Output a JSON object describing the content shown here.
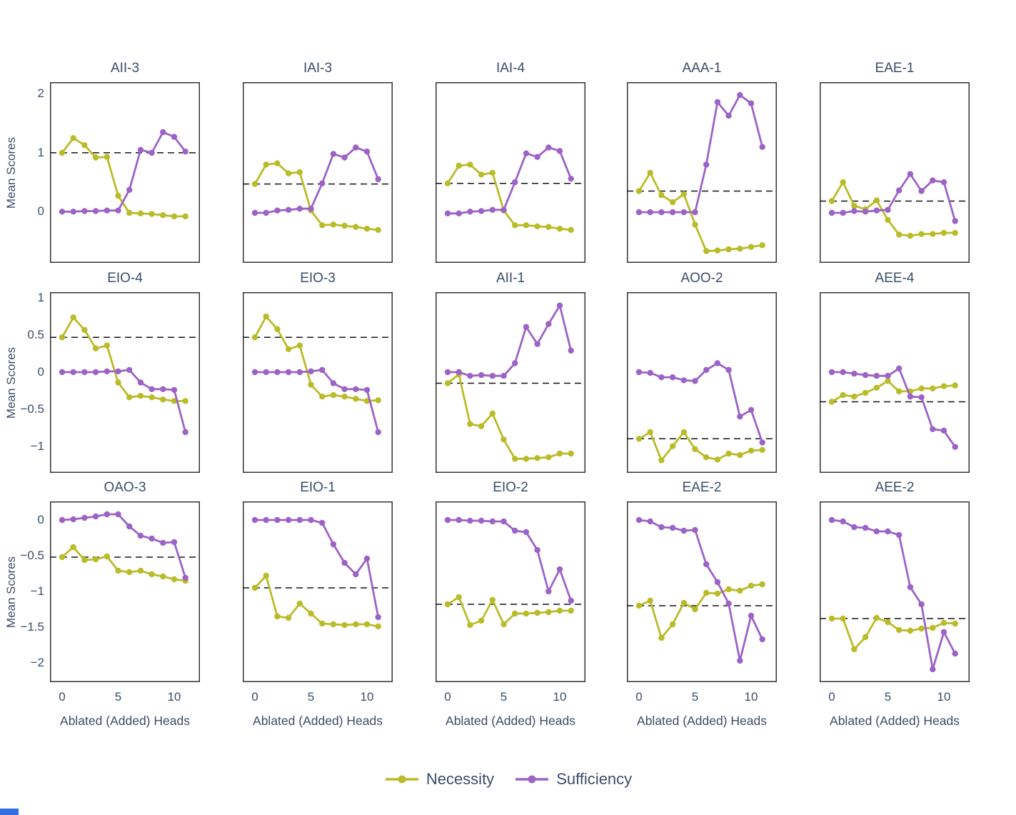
{
  "figure": {
    "ylabel": "Mean Scores",
    "xlabel": "Ablated (Added) Heads",
    "legend": {
      "items": [
        {
          "label": "Necessity",
          "color": "#b9bc28"
        },
        {
          "label": "Sufficiency",
          "color": "#9c63c6"
        }
      ]
    },
    "colors": {
      "text": "#3c4d68",
      "axis": "#333333",
      "dashed": "#141414",
      "background": "#ffffff",
      "necessity": "#b9bc28",
      "sufficiency": "#9c63c6",
      "artifact_blue": "#2f6fe4"
    }
  },
  "chart_data": {
    "type": "line",
    "x": [
      0,
      1,
      2,
      3,
      4,
      5,
      6,
      7,
      8,
      9,
      10,
      11
    ],
    "x_ticks": [
      0,
      5,
      10
    ],
    "x_tick_labels": [
      "0",
      "5",
      "10"
    ],
    "xlabel": "Ablated (Added) Heads",
    "ylabel": "Mean Scores",
    "legend": [
      "Necessity",
      "Sufficiency"
    ],
    "legend_position": "bottom-center",
    "grid": false,
    "layout": {
      "rows": 3,
      "cols": 5
    },
    "rows": [
      {
        "ylim": [
          -0.87,
          2.2
        ],
        "yticks": [
          2,
          1,
          0
        ],
        "ytick_labels": [
          "2",
          "1",
          "0"
        ]
      },
      {
        "ylim": [
          -1.36,
          1.08
        ],
        "yticks": [
          1,
          0.5,
          0,
          -0.5,
          -1
        ],
        "ytick_labels": [
          "1",
          "0.5",
          "0",
          "−0.5",
          "−1"
        ]
      },
      {
        "ylim": [
          -2.27,
          0.26
        ],
        "yticks": [
          0,
          -0.5,
          -1,
          -1.5,
          -2
        ],
        "ytick_labels": [
          "0",
          "−0.5",
          "−1",
          "−1.5",
          "−2"
        ]
      }
    ],
    "subplots": [
      {
        "title": "AII-3",
        "row": 0,
        "dashed_y": 1.0,
        "necessity": [
          1.0,
          1.25,
          1.13,
          0.92,
          0.93,
          0.27,
          -0.02,
          -0.03,
          -0.04,
          -0.06,
          -0.08,
          -0.08
        ],
        "sufficiency": [
          0.0,
          0.0,
          0.01,
          0.01,
          0.02,
          0.02,
          0.37,
          1.05,
          1.0,
          1.35,
          1.27,
          1.02
        ]
      },
      {
        "title": "IAI-3",
        "row": 0,
        "dashed_y": 0.47,
        "necessity": [
          0.47,
          0.8,
          0.82,
          0.65,
          0.67,
          0.02,
          -0.23,
          -0.22,
          -0.24,
          -0.26,
          -0.29,
          -0.31
        ],
        "sufficiency": [
          -0.02,
          -0.02,
          0.02,
          0.03,
          0.05,
          0.05,
          0.48,
          0.98,
          0.92,
          1.09,
          1.02,
          0.55
        ]
      },
      {
        "title": "IAI-4",
        "row": 0,
        "dashed_y": 0.48,
        "necessity": [
          0.48,
          0.78,
          0.8,
          0.63,
          0.66,
          0.02,
          -0.23,
          -0.23,
          -0.25,
          -0.26,
          -0.29,
          -0.31
        ],
        "sufficiency": [
          -0.03,
          -0.03,
          0.0,
          0.01,
          0.03,
          0.03,
          0.5,
          0.99,
          0.93,
          1.09,
          1.03,
          0.56
        ]
      },
      {
        "title": "AAA-1",
        "row": 0,
        "dashed_y": 0.35,
        "necessity": [
          0.35,
          0.66,
          0.28,
          0.16,
          0.3,
          -0.22,
          -0.67,
          -0.66,
          -0.64,
          -0.63,
          -0.6,
          -0.57
        ],
        "sufficiency": [
          -0.01,
          -0.01,
          -0.01,
          -0.01,
          -0.01,
          -0.01,
          0.8,
          1.86,
          1.63,
          1.98,
          1.84,
          1.1
        ]
      },
      {
        "title": "EAE-1",
        "row": 0,
        "dashed_y": 0.18,
        "necessity": [
          0.18,
          0.5,
          0.1,
          0.04,
          0.19,
          -0.14,
          -0.39,
          -0.41,
          -0.38,
          -0.38,
          -0.36,
          -0.36
        ],
        "sufficiency": [
          -0.02,
          -0.02,
          0.01,
          0.0,
          0.02,
          0.03,
          0.36,
          0.64,
          0.35,
          0.53,
          0.5,
          -0.16
        ]
      },
      {
        "title": "EIO-4",
        "row": 1,
        "dashed_y": 0.47,
        "necessity": [
          0.47,
          0.74,
          0.57,
          0.32,
          0.36,
          -0.14,
          -0.34,
          -0.32,
          -0.34,
          -0.37,
          -0.39,
          -0.39
        ],
        "sufficiency": [
          0.0,
          0.0,
          0.0,
          0.0,
          0.01,
          0.01,
          0.03,
          -0.14,
          -0.23,
          -0.23,
          -0.24,
          -0.81
        ]
      },
      {
        "title": "EIO-3",
        "row": 1,
        "dashed_y": 0.47,
        "necessity": [
          0.47,
          0.75,
          0.58,
          0.31,
          0.36,
          -0.17,
          -0.33,
          -0.31,
          -0.33,
          -0.36,
          -0.39,
          -0.38
        ],
        "sufficiency": [
          0.0,
          0.0,
          0.0,
          0.0,
          0.0,
          0.01,
          0.03,
          -0.15,
          -0.23,
          -0.23,
          -0.24,
          -0.81
        ]
      },
      {
        "title": "AII-1",
        "row": 1,
        "dashed_y": -0.15,
        "necessity": [
          -0.15,
          -0.03,
          -0.7,
          -0.73,
          -0.56,
          -0.91,
          -1.17,
          -1.17,
          -1.16,
          -1.15,
          -1.1,
          -1.1
        ],
        "sufficiency": [
          0.0,
          0.0,
          -0.05,
          -0.04,
          -0.05,
          -0.05,
          0.12,
          0.61,
          0.38,
          0.65,
          0.9,
          0.29
        ]
      },
      {
        "title": "AOO-2",
        "row": 1,
        "dashed_y": -0.9,
        "necessity": [
          -0.9,
          -0.81,
          -1.19,
          -1.0,
          -0.81,
          -1.04,
          -1.15,
          -1.18,
          -1.1,
          -1.12,
          -1.06,
          -1.05
        ],
        "sufficiency": [
          0.0,
          -0.01,
          -0.07,
          -0.07,
          -0.11,
          -0.12,
          0.03,
          0.12,
          0.03,
          -0.6,
          -0.51,
          -0.95
        ]
      },
      {
        "title": "AEE-4",
        "row": 1,
        "dashed_y": -0.4,
        "necessity": [
          -0.4,
          -0.31,
          -0.33,
          -0.28,
          -0.21,
          -0.12,
          -0.26,
          -0.26,
          -0.22,
          -0.22,
          -0.19,
          -0.18
        ],
        "sufficiency": [
          0.0,
          0.0,
          -0.02,
          -0.04,
          -0.05,
          -0.05,
          0.05,
          -0.33,
          -0.34,
          -0.77,
          -0.79,
          -1.01
        ]
      },
      {
        "title": "OAO-3",
        "row": 2,
        "dashed_y": -0.52,
        "necessity": [
          -0.52,
          -0.38,
          -0.56,
          -0.55,
          -0.51,
          -0.71,
          -0.73,
          -0.71,
          -0.76,
          -0.79,
          -0.83,
          -0.85
        ],
        "sufficiency": [
          0.0,
          0.01,
          0.03,
          0.05,
          0.08,
          0.08,
          -0.09,
          -0.22,
          -0.26,
          -0.32,
          -0.31,
          -0.81
        ]
      },
      {
        "title": "EIO-1",
        "row": 2,
        "dashed_y": -0.95,
        "necessity": [
          -0.95,
          -0.78,
          -1.35,
          -1.37,
          -1.17,
          -1.31,
          -1.45,
          -1.46,
          -1.47,
          -1.46,
          -1.46,
          -1.49
        ],
        "sufficiency": [
          0.0,
          0.0,
          0.0,
          0.0,
          0.0,
          0.0,
          -0.04,
          -0.34,
          -0.6,
          -0.76,
          -0.54,
          -1.36
        ]
      },
      {
        "title": "EIO-2",
        "row": 2,
        "dashed_y": -1.18,
        "necessity": [
          -1.18,
          -1.08,
          -1.47,
          -1.41,
          -1.12,
          -1.46,
          -1.31,
          -1.31,
          -1.3,
          -1.29,
          -1.27,
          -1.27
        ],
        "sufficiency": [
          0.0,
          0.0,
          -0.01,
          -0.01,
          -0.02,
          -0.02,
          -0.15,
          -0.17,
          -0.42,
          -1.0,
          -0.69,
          -1.13
        ]
      },
      {
        "title": "EAE-2",
        "row": 2,
        "dashed_y": -1.2,
        "necessity": [
          -1.2,
          -1.13,
          -1.65,
          -1.46,
          -1.16,
          -1.25,
          -1.02,
          -1.03,
          -0.97,
          -0.99,
          -0.92,
          -0.9
        ],
        "sufficiency": [
          0.0,
          -0.02,
          -0.1,
          -0.11,
          -0.15,
          -0.14,
          -0.62,
          -0.87,
          -1.17,
          -1.97,
          -1.34,
          -1.67
        ]
      },
      {
        "title": "AEE-2",
        "row": 2,
        "dashed_y": -1.38,
        "necessity": [
          -1.38,
          -1.38,
          -1.81,
          -1.64,
          -1.37,
          -1.43,
          -1.54,
          -1.55,
          -1.52,
          -1.51,
          -1.44,
          -1.45
        ],
        "sufficiency": [
          0.0,
          -0.02,
          -0.1,
          -0.11,
          -0.16,
          -0.16,
          -0.21,
          -0.94,
          -1.18,
          -2.09,
          -1.57,
          -1.87
        ]
      }
    ]
  }
}
